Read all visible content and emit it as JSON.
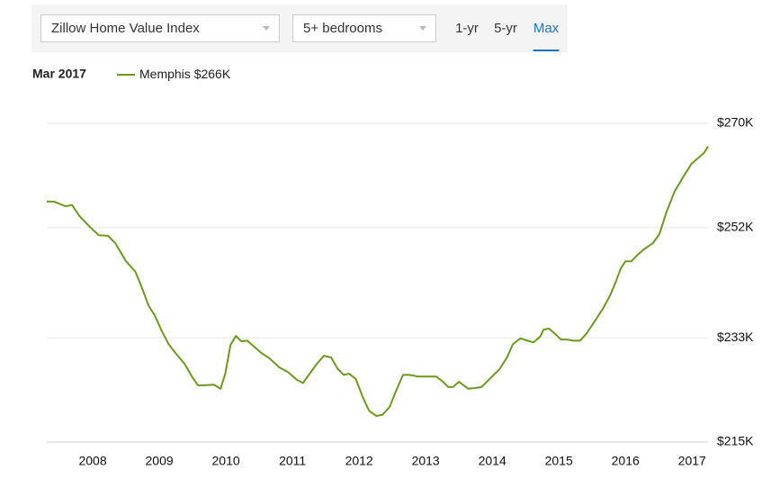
{
  "controls": {
    "index_select": "Zillow Home Value Index",
    "bedrooms_select": "5+ bedrooms",
    "ranges": [
      "1-yr",
      "5-yr",
      "Max"
    ],
    "active_range": "Max"
  },
  "chart_data": {
    "type": "line",
    "legend_date": "Mar 2017",
    "legend_value": "$266K",
    "x": [
      2007.31,
      2007.42,
      2007.59,
      2007.69,
      2007.8,
      2007.96,
      2008.09,
      2008.23,
      2008.34,
      2008.5,
      2008.64,
      2008.73,
      2008.84,
      2008.93,
      2009.04,
      2009.14,
      2009.24,
      2009.38,
      2009.49,
      2009.58,
      2009.69,
      2009.82,
      2009.92,
      2009.99,
      2010.07,
      2010.15,
      2010.23,
      2010.32,
      2010.42,
      2010.53,
      2010.66,
      2010.8,
      2010.93,
      2011.07,
      2011.16,
      2011.27,
      2011.36,
      2011.47,
      2011.58,
      2011.68,
      2011.77,
      2011.85,
      2011.95,
      2012.05,
      2012.15,
      2012.26,
      2012.35,
      2012.46,
      2012.55,
      2012.66,
      2012.76,
      2012.89,
      2013.03,
      2013.16,
      2013.26,
      2013.34,
      2013.41,
      2013.5,
      2013.64,
      2013.73,
      2013.84,
      2013.97,
      2014.11,
      2014.22,
      2014.31,
      2014.42,
      2014.53,
      2014.62,
      2014.72,
      2014.77,
      2014.85,
      2014.96,
      2015.03,
      2015.12,
      2015.22,
      2015.32,
      2015.42,
      2015.53,
      2015.66,
      2015.77,
      2015.86,
      2015.93,
      2016.0,
      2016.09,
      2016.18,
      2016.27,
      2016.41,
      2016.51,
      2016.61,
      2016.74,
      2016.88,
      2016.99,
      2017.08,
      2017.18,
      2017.24
    ],
    "series": [
      {
        "name": "Memphis",
        "color": "#6b9a1e",
        "values": [
          256.5,
          256.5,
          255.7,
          255.9,
          254.0,
          252.1,
          250.7,
          250.6,
          249.3,
          246.2,
          244.4,
          241.9,
          238.5,
          236.9,
          234.1,
          231.9,
          230.4,
          228.5,
          226.3,
          224.8,
          224.8,
          224.9,
          224.2,
          226.8,
          231.8,
          233.3,
          232.4,
          232.5,
          231.5,
          230.4,
          229.4,
          227.9,
          227.1,
          225.7,
          225.2,
          227.0,
          228.4,
          229.9,
          229.6,
          227.6,
          226.6,
          226.8,
          225.9,
          222.9,
          220.4,
          219.5,
          219.7,
          221.1,
          223.7,
          226.6,
          226.6,
          226.3,
          226.3,
          226.3,
          225.4,
          224.5,
          224.5,
          225.4,
          224.2,
          224.3,
          224.5,
          226.0,
          227.6,
          229.6,
          231.9,
          232.9,
          232.5,
          232.2,
          233.2,
          234.4,
          234.6,
          233.5,
          232.7,
          232.7,
          232.5,
          232.5,
          233.8,
          235.7,
          238.0,
          240.3,
          242.8,
          245.0,
          246.2,
          246.2,
          247.3,
          248.2,
          249.3,
          250.9,
          254.5,
          258.3,
          261.0,
          263.0,
          263.9,
          264.9,
          266
        ]
      }
    ],
    "xlim": [
      2007.31,
      2017.24
    ],
    "xticks": [
      2008,
      2009,
      2010,
      2011,
      2012,
      2013,
      2014,
      2015,
      2016,
      2017
    ],
    "ylim": [
      215,
      270
    ],
    "yticks": [
      {
        "value": 270,
        "label": "$270K"
      },
      {
        "value": 252,
        "label": "$252K"
      },
      {
        "value": 233,
        "label": "$233K"
      },
      {
        "value": 215,
        "label": "$215K"
      }
    ],
    "grid": true
  }
}
